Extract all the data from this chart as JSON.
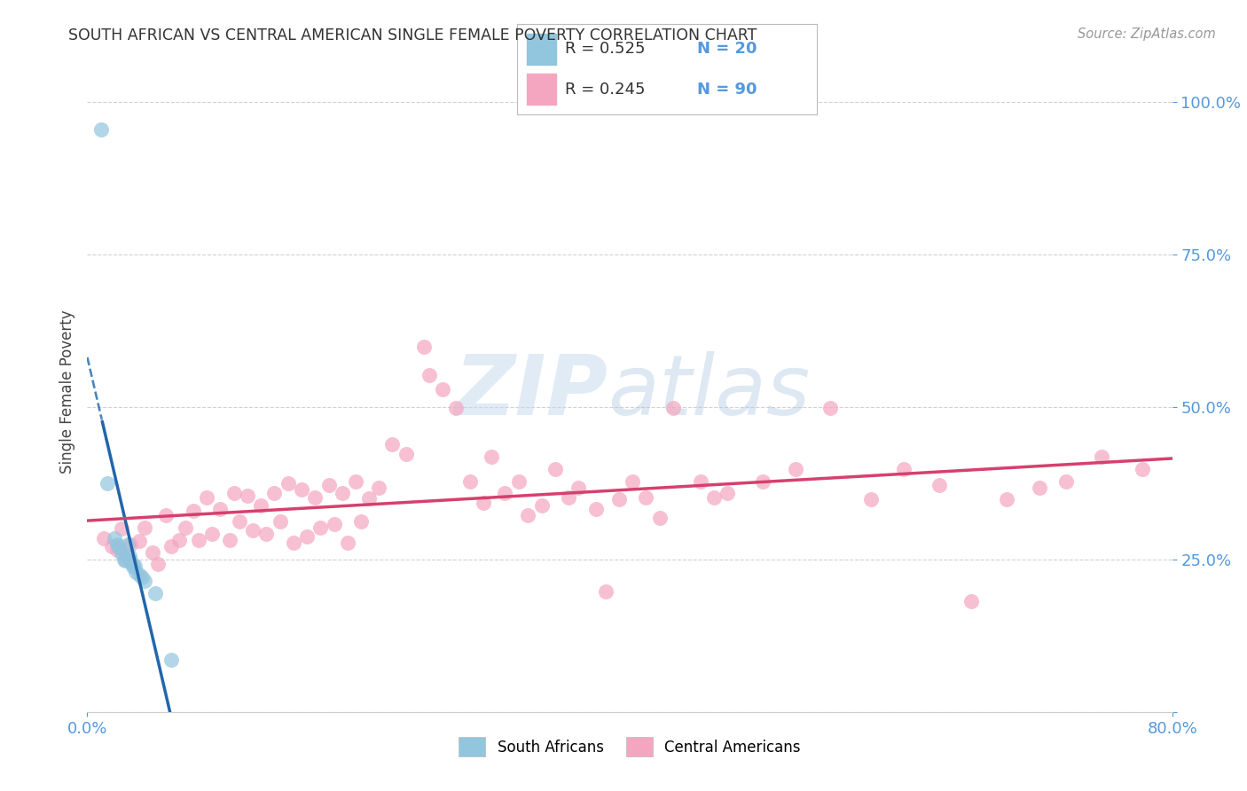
{
  "title": "SOUTH AFRICAN VS CENTRAL AMERICAN SINGLE FEMALE POVERTY CORRELATION CHART",
  "source": "Source: ZipAtlas.com",
  "ylabel": "Single Female Poverty",
  "xlim": [
    0.0,
    0.8
  ],
  "ylim": [
    0.0,
    1.05
  ],
  "blue_scatter_color": "#92c5de",
  "pink_scatter_color": "#f4a6c0",
  "blue_line_color": "#2166ac",
  "pink_line_color": "#d6406e",
  "grid_color": "#cccccc",
  "tick_color": "#5599dd",
  "watermark_color": "#c5d8ee",
  "south_african_x": [
    0.01,
    0.015,
    0.02,
    0.022,
    0.023,
    0.025,
    0.027,
    0.028,
    0.03,
    0.031,
    0.032,
    0.033,
    0.034,
    0.035,
    0.036,
    0.038,
    0.04,
    0.042,
    0.05,
    0.062
  ],
  "south_african_y": [
    0.955,
    0.375,
    0.285,
    0.275,
    0.27,
    0.26,
    0.25,
    0.248,
    0.275,
    0.255,
    0.248,
    0.242,
    0.238,
    0.24,
    0.23,
    0.225,
    0.22,
    0.215,
    0.195,
    0.085
  ],
  "central_american_x": [
    0.012,
    0.018,
    0.022,
    0.025,
    0.028,
    0.032,
    0.038,
    0.042,
    0.048,
    0.052,
    0.058,
    0.062,
    0.068,
    0.072,
    0.078,
    0.082,
    0.088,
    0.092,
    0.098,
    0.105,
    0.108,
    0.112,
    0.118,
    0.122,
    0.128,
    0.132,
    0.138,
    0.142,
    0.148,
    0.152,
    0.158,
    0.162,
    0.168,
    0.172,
    0.178,
    0.182,
    0.188,
    0.192,
    0.198,
    0.202,
    0.208,
    0.215,
    0.225,
    0.235,
    0.248,
    0.252,
    0.262,
    0.272,
    0.282,
    0.292,
    0.298,
    0.308,
    0.318,
    0.325,
    0.335,
    0.345,
    0.355,
    0.362,
    0.375,
    0.382,
    0.392,
    0.402,
    0.412,
    0.422,
    0.432,
    0.452,
    0.462,
    0.472,
    0.498,
    0.522,
    0.548,
    0.578,
    0.602,
    0.628,
    0.652,
    0.678,
    0.702,
    0.722,
    0.748,
    0.778
  ],
  "central_american_y": [
    0.285,
    0.272,
    0.265,
    0.3,
    0.255,
    0.275,
    0.28,
    0.302,
    0.262,
    0.242,
    0.322,
    0.272,
    0.282,
    0.302,
    0.33,
    0.282,
    0.352,
    0.292,
    0.332,
    0.282,
    0.358,
    0.312,
    0.355,
    0.298,
    0.338,
    0.292,
    0.358,
    0.312,
    0.375,
    0.278,
    0.365,
    0.288,
    0.352,
    0.302,
    0.372,
    0.308,
    0.358,
    0.278,
    0.378,
    0.312,
    0.35,
    0.368,
    0.438,
    0.422,
    0.598,
    0.552,
    0.528,
    0.498,
    0.378,
    0.342,
    0.418,
    0.358,
    0.378,
    0.322,
    0.338,
    0.398,
    0.352,
    0.368,
    0.332,
    0.198,
    0.348,
    0.378,
    0.352,
    0.318,
    0.498,
    0.378,
    0.352,
    0.358,
    0.378,
    0.398,
    0.498,
    0.348,
    0.398,
    0.372,
    0.182,
    0.348,
    0.368,
    0.378,
    0.418,
    0.398
  ]
}
